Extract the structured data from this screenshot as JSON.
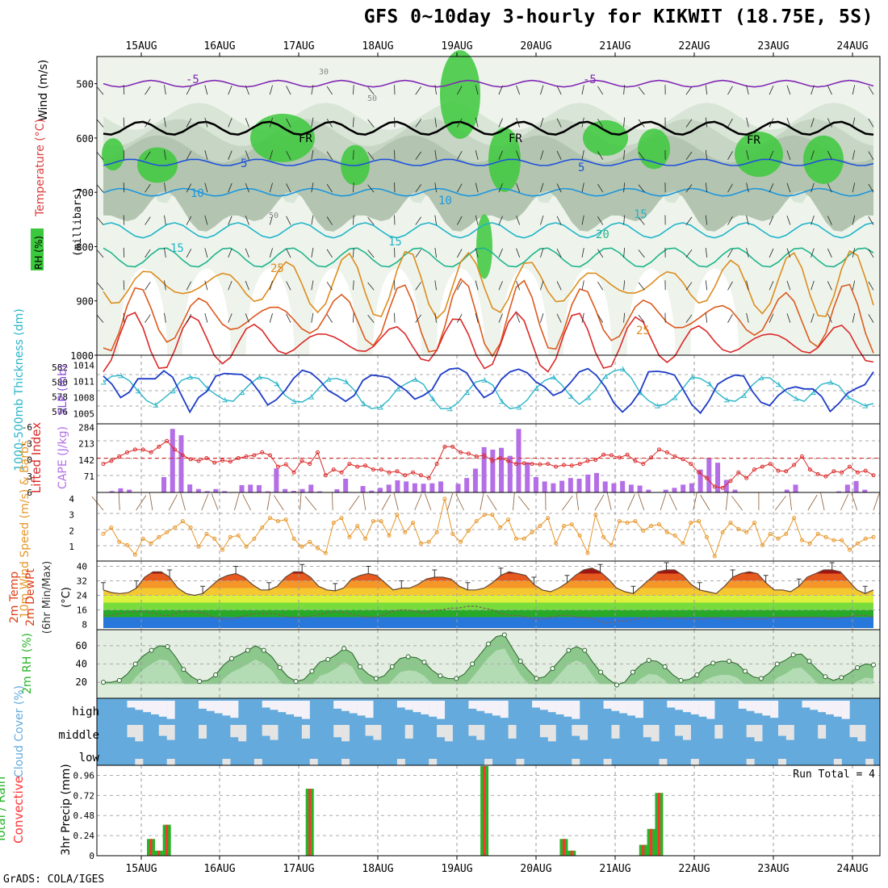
{
  "title": "GFS 0~10day 3-hourly for KIKWIT (18.75E, 5S)",
  "footer": "GrADS: COLA/IGES",
  "run_total": "Run Total = 4",
  "dates": [
    "15AUG",
    "16AUG",
    "17AUG",
    "18AUG",
    "19AUG",
    "20AUG",
    "21AUG",
    "22AUG",
    "23AUG",
    "24AUG"
  ],
  "colors": {
    "rh_green": "#3cc83c",
    "temp_line": "#1e50dc",
    "slp": "#1e3cc8",
    "thick": "#28b4c8",
    "cape": "#b46ee6",
    "li": "#dc2828",
    "wind": "#e69628",
    "rain": "#28b428",
    "conv": "#ff3232",
    "cloud": "#64aadc"
  },
  "chart_data": [
    {
      "type": "heatmap",
      "panel": "upper-air",
      "ylabels": [
        "Wind (m/s)",
        "Temperature (°C)",
        "RH (%)",
        "(millibars)"
      ],
      "yticks": [
        500,
        600,
        700,
        800,
        900,
        1000
      ],
      "isotherm_labels": [
        "-5",
        "-5",
        "FR",
        "FR",
        "FR",
        "5",
        "5",
        "10",
        "10",
        "15",
        "15",
        "15",
        "20",
        "25",
        "25"
      ],
      "rh_labels": [
        "30",
        "50",
        "50"
      ]
    },
    {
      "type": "line",
      "panel": "slp-thickness",
      "ylabel_left": "1000-500mb Thickness (dm)",
      "ylabel_right": "SLP (mb)",
      "yticks_left": [
        576,
        578,
        580,
        582
      ],
      "yticks_right": [
        1005,
        1008,
        1011,
        1014
      ],
      "series": [
        {
          "name": "SLP",
          "values": [
            1012,
            1010.5,
            1008,
            1009,
            1011.5,
            1011.5,
            1011.5,
            1013,
            1011.8,
            1008.5,
            1005.3,
            1008,
            1009.2,
            1012,
            1012.5,
            1012.4,
            1012.3,
            1011.2,
            1009.1,
            1006.6,
            1007.6,
            1009.3,
            1011.6,
            1013.1,
            1012.6,
            1011.2,
            1009.3,
            1008.4,
            1007.3,
            1008.4,
            1011.2,
            1012.2,
            1012,
            1011.7,
            1010.4,
            1009.3,
            1007.7,
            1008.4,
            1009.5,
            1012.3,
            1013.3,
            1013.5,
            1012.6,
            1010,
            1008,
            1008.9,
            1011.4,
            1012.8,
            1013.3,
            1012.6,
            1010.9,
            1010,
            1008.4,
            1009.1,
            1010.8,
            1012.8,
            1013.4,
            1012.1,
            1010,
            1007,
            1005.3,
            1006.8,
            1009.1,
            1012.8,
            1012.9,
            1012.7,
            1012.2,
            1009.5,
            1006.7,
            1005.1,
            1007.4,
            1010.5,
            1011.5,
            1012.2,
            1012,
            1009.2,
            1007.1,
            1006.5,
            1008.4,
            1009.6,
            1010,
            1009.6,
            1009.6,
            1008.2,
            1005.4,
            1006.9,
            1008.8,
            1009.7,
            1010.4,
            1012.8
          ]
        },
        {
          "name": "Thickness",
          "values": [
            580,
            580.8,
            580.9,
            580.2,
            578.8,
            577.5,
            576.9,
            577.8,
            578.8,
            580.2,
            580.7,
            580.5,
            579.2,
            578.3,
            577.6,
            577.4,
            578.6,
            579.8,
            580.7,
            580.5,
            579.8,
            578.2,
            577.4,
            577.3,
            578,
            579.3,
            580.4,
            580.5,
            580.1,
            578.9,
            577.1,
            576.4,
            576.6,
            577.6,
            579.1,
            579.8,
            580.4,
            579.7,
            577.8,
            576.4,
            576.4,
            577.2,
            578.6,
            580,
            580.3,
            579.6,
            577.4,
            576.4,
            576.6,
            577.6,
            579.2,
            580.2,
            580.7,
            579.6,
            578.1,
            577,
            577.9,
            579.1,
            580.8,
            581.5,
            581.8,
            580.6,
            578.6,
            577.5,
            576.8,
            577,
            577.9,
            579.2,
            580.7,
            580.5,
            579.8,
            578.5,
            577.6,
            577.4,
            578.2,
            579.6,
            580.6,
            580.6,
            579.7,
            578.6,
            577.8,
            577.4,
            578.6,
            579.7,
            580,
            579.5,
            578,
            577.4,
            576.8,
            577.1
          ]
        }
      ]
    },
    {
      "type": "bar",
      "panel": "cape-li",
      "ylabel_left": "Lifted Index",
      "ylabel_right": "CAPE (J/kg)",
      "yticks_left": [
        "-6",
        "-3",
        "0",
        "3",
        "6"
      ],
      "yticks_right": [
        71,
        142,
        213,
        284
      ],
      "series": [
        {
          "name": "CAPE",
          "values": [
            0,
            6,
            18,
            12,
            0,
            0,
            0,
            67,
            278,
            250,
            35,
            15,
            6,
            15,
            6,
            0,
            32,
            34,
            32,
            5,
            105,
            15,
            7,
            15,
            34,
            5,
            0,
            14,
            60,
            0,
            28,
            8,
            20,
            34,
            53,
            48,
            40,
            38,
            40,
            48,
            0,
            38,
            63,
            104,
            198,
            187,
            195,
            160,
            278,
            132,
            67,
            48,
            40,
            51,
            63,
            60,
            78,
            85,
            48,
            40,
            50,
            34,
            30,
            12,
            0,
            12,
            20,
            34,
            40,
            100,
            150,
            130,
            55,
            12,
            0,
            0,
            0,
            0,
            0,
            12,
            34,
            0,
            0,
            0,
            0,
            5,
            34,
            50,
            12,
            0
          ]
        },
        {
          "name": "Lifted Index",
          "values": [
            1,
            0.5,
            -0.3,
            -1,
            -1.5,
            -1.5,
            -1,
            -2,
            -3,
            -1.5,
            -0.5,
            0.2,
            0.5,
            0,
            0.8,
            0.4,
            0.6,
            0,
            -0.3,
            -0.5,
            -1,
            -0.5,
            1.5,
            1.1,
            2.5,
            0.5,
            1,
            -1,
            3,
            2,
            2.5,
            1,
            1.5,
            1.3,
            2,
            2,
            2.5,
            2.3,
            3,
            2.5,
            3,
            3.5,
            1,
            -2,
            -2,
            -1,
            -0.8,
            -0.3,
            -0.5,
            0.5,
            0,
            0.5,
            1,
            0.9,
            1,
            1.1,
            1,
            1.5,
            1.2,
            1.3,
            1,
            0.5,
            0.3,
            -0.6,
            -0.5,
            -0.1,
            -0.6,
            0.5,
            1,
            -0.1,
            -1.5,
            -1,
            -0.3,
            0.2,
            1,
            2.5,
            3.5,
            5,
            5.2,
            4,
            2.5,
            3.5,
            2,
            1.5,
            1,
            2.2,
            2.3,
            1.2,
            -0.3,
            2,
            2.8,
            3.2,
            2.3,
            2.5,
            1.5,
            2.5,
            2.2,
            3
          ]
        }
      ]
    },
    {
      "type": "line",
      "panel": "10m-wind",
      "ylabel": "10m Wind Speed (m/s) & Barbs",
      "yticks": [
        1,
        2,
        3,
        4
      ],
      "series": [
        {
          "name": "10m Wind Speed",
          "values": [
            1.8,
            2.2,
            1.3,
            1.1,
            0.5,
            1.5,
            1.2,
            1.6,
            1.9,
            2.2,
            2.6,
            2.2,
            1,
            1.8,
            1.5,
            0.8,
            1.6,
            1.7,
            1,
            1.5,
            2.2,
            2.8,
            2.6,
            2.7,
            1.5,
            1,
            1.3,
            0.9,
            0.6,
            2.5,
            2.8,
            1.6,
            2.3,
            1.5,
            2.6,
            2.6,
            1.7,
            3,
            1.9,
            2.5,
            1.2,
            1.3,
            1.9,
            4,
            1.8,
            1.3,
            2,
            2.6,
            3,
            3,
            2.2,
            2.7,
            1.5,
            1.5,
            1.9,
            2.3,
            2.8,
            1.2,
            2.3,
            2.4,
            1.7,
            0.6,
            3,
            1.6,
            1.1,
            2.6,
            2.5,
            2.6,
            2,
            2.3,
            2.4,
            1.9,
            1.7,
            1.2,
            2.5,
            2.6,
            1.6,
            0.4,
            1.9,
            2.5,
            2.1,
            1.9,
            2.5,
            1.1,
            1.8,
            1.5,
            1.8,
            2.8,
            1.4,
            1.2,
            1.8,
            1.6,
            1.4,
            1.4,
            0.8,
            1.2,
            1.5,
            1.6
          ]
        }
      ]
    },
    {
      "type": "area",
      "panel": "2m-temp",
      "ylabel": "2m Temp 2m DewPt (6hr Min/Max) (°C)",
      "yticks": [
        8,
        16,
        24,
        32,
        40
      ],
      "series": [
        {
          "name": "2m Temp",
          "values": [
            27,
            25.5,
            25,
            25.5,
            28,
            34,
            37,
            37,
            34,
            28,
            25,
            24,
            25,
            29,
            33,
            35,
            36,
            34,
            30,
            27,
            27,
            29,
            34,
            37,
            37,
            34,
            29,
            27,
            26.5,
            28,
            33,
            35,
            36,
            35,
            31,
            27,
            28,
            28,
            30,
            33,
            34,
            34,
            33,
            29,
            27,
            27,
            28,
            31,
            35,
            37,
            36,
            35,
            30,
            27,
            26,
            28,
            31,
            35,
            38,
            39,
            37,
            33,
            28,
            26,
            25,
            29,
            33,
            37,
            38,
            38,
            35,
            30,
            27,
            26,
            25,
            29,
            34,
            36,
            37,
            36,
            31,
            27,
            27,
            26,
            29,
            34,
            36,
            38,
            38,
            37,
            32,
            27,
            25,
            27
          ]
        },
        {
          "name": "2m DewPt",
          "values": [
            13,
            13,
            14,
            15,
            15,
            15,
            14,
            13,
            13,
            15,
            15,
            15,
            14,
            12,
            11,
            11,
            12,
            13,
            14,
            14,
            14,
            13,
            12,
            12,
            12,
            13,
            14,
            15,
            15,
            14,
            13,
            12,
            12,
            13,
            15,
            16,
            16,
            15,
            14,
            16,
            16,
            17,
            17,
            18,
            18,
            17,
            16,
            14,
            13,
            13,
            12,
            11,
            11,
            12,
            13,
            13,
            12,
            12,
            11,
            9,
            9,
            10,
            10,
            11,
            12,
            11,
            12,
            11,
            12,
            11,
            11,
            11,
            12,
            11,
            11,
            12,
            11,
            11,
            11,
            12,
            12,
            12,
            12,
            12,
            12,
            12,
            11,
            12,
            12,
            13,
            13,
            12
          ]
        }
      ]
    },
    {
      "type": "area",
      "panel": "2m-rh",
      "ylabel": "2m RH (%)",
      "yticks": [
        20,
        40,
        60
      ],
      "series": [
        {
          "name": "2m RH",
          "values": [
            20,
            20,
            22,
            29,
            40,
            49,
            55,
            60,
            59,
            48,
            34,
            26,
            21,
            22,
            28,
            39,
            46,
            50,
            55,
            60,
            55,
            48,
            36,
            26,
            21,
            23,
            32,
            42,
            45,
            50,
            57,
            52,
            37,
            29,
            24,
            27,
            37,
            46,
            48,
            47,
            42,
            33,
            27,
            24,
            24,
            29,
            40,
            51,
            62,
            70,
            72,
            57,
            43,
            33,
            24,
            26,
            35,
            45,
            55,
            59,
            55,
            42,
            31,
            23,
            17,
            20,
            31,
            39,
            44,
            43,
            37,
            28,
            22,
            23,
            28,
            37,
            41,
            43,
            43,
            40,
            32,
            26,
            24,
            30,
            40,
            44,
            50,
            51,
            43,
            34,
            26,
            22,
            25,
            30,
            36,
            40,
            39
          ]
        }
      ]
    },
    {
      "type": "heatmap",
      "panel": "cloud-cover",
      "ylabel": "Cloud Cover (%)",
      "rows": [
        "high",
        "middle",
        "low"
      ]
    },
    {
      "type": "bar",
      "panel": "3hr-precip",
      "ylabel_left": "Total / Rain Convective",
      "ylabel_right": "3hr Precip (mm)",
      "yticks": [
        0,
        0.24,
        0.48,
        0.72,
        0.96
      ],
      "series": [
        {
          "name": "Total / Rain",
          "values": [
            0,
            0,
            0,
            0,
            0,
            0,
            0.2,
            0.06,
            0.37,
            0,
            0,
            0,
            0,
            0,
            0,
            0,
            0,
            0,
            0,
            0,
            0,
            0,
            0,
            0,
            0,
            0,
            0.8,
            0,
            0,
            0,
            0,
            0,
            0,
            0,
            0,
            0,
            0,
            0,
            0,
            0,
            0,
            0,
            0,
            0,
            0,
            0,
            0,
            0,
            1.07,
            0,
            0,
            0,
            0,
            0,
            0,
            0,
            0,
            0,
            0.2,
            0.06,
            0,
            0,
            0,
            0,
            0,
            0,
            0,
            0,
            0.13,
            0.32,
            0.75,
            0,
            0,
            0,
            0,
            0,
            0,
            0,
            0,
            0,
            0,
            0,
            0,
            0,
            0,
            0,
            0,
            0,
            0,
            0,
            0,
            0,
            0,
            0,
            0,
            0,
            0,
            0
          ]
        }
      ]
    }
  ]
}
